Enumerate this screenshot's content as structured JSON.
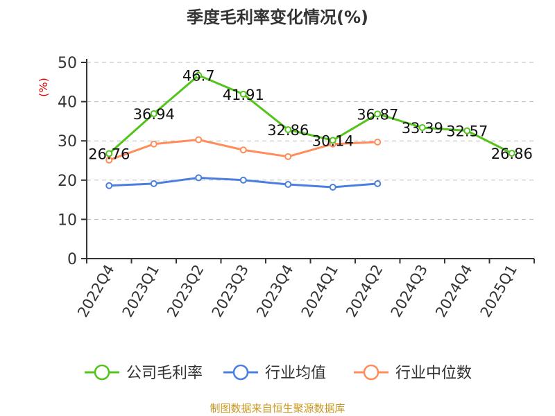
{
  "chart_data": {
    "type": "line",
    "title": "季度毛利率变化情况(%)",
    "ylabel": "(%)",
    "xlabel": "",
    "ylim": [
      0,
      50
    ],
    "yticks": [
      0,
      10,
      20,
      30,
      40,
      50
    ],
    "grid": true,
    "legend_position": "bottom",
    "categories": [
      "2022Q4",
      "2023Q1",
      "2023Q2",
      "2023Q3",
      "2023Q4",
      "2024Q1",
      "2024Q2",
      "2024Q3",
      "2024Q4",
      "2025Q1"
    ],
    "series": [
      {
        "name": "公司毛利率",
        "color": "#52c41a",
        "labels": true,
        "values": [
          26.76,
          36.94,
          46.7,
          41.91,
          32.86,
          30.14,
          36.87,
          33.39,
          32.57,
          26.86
        ]
      },
      {
        "name": "行业均值",
        "color": "#4a7fe0",
        "labels": false,
        "values": [
          18.6,
          19.1,
          20.6,
          20.0,
          18.9,
          18.2,
          19.1,
          null,
          null,
          null
        ]
      },
      {
        "name": "行业中位数",
        "color": "#ff8c5a",
        "labels": false,
        "values": [
          25.1,
          29.2,
          30.3,
          27.7,
          26.0,
          29.2,
          29.7,
          null,
          null,
          null
        ]
      }
    ]
  },
  "footer": "制图数据来自恒生聚源数据库"
}
